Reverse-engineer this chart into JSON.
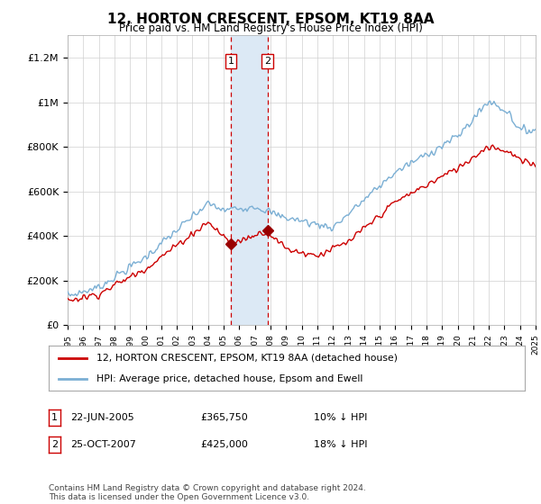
{
  "title": "12, HORTON CRESCENT, EPSOM, KT19 8AA",
  "subtitle": "Price paid vs. HM Land Registry's House Price Index (HPI)",
  "x_start_year": 1995,
  "x_end_year": 2025,
  "ylim": [
    0,
    1300000
  ],
  "yticks": [
    0,
    200000,
    400000,
    600000,
    800000,
    1000000,
    1200000
  ],
  "ytick_labels": [
    "£0",
    "£200K",
    "£400K",
    "£600K",
    "£800K",
    "£1M",
    "£1.2M"
  ],
  "sale1_date": 2005.47,
  "sale1_price": 365750,
  "sale1_label": "1",
  "sale1_text": "22-JUN-2005",
  "sale1_price_str": "£365,750",
  "sale1_hpi": "10% ↓ HPI",
  "sale2_date": 2007.81,
  "sale2_price": 425000,
  "sale2_label": "2",
  "sale2_text": "25-OCT-2007",
  "sale2_price_str": "£425,000",
  "sale2_hpi": "18% ↓ HPI",
  "hpi_line_color": "#7bafd4",
  "sale_line_color": "#cc0000",
  "shade_color": "#dce9f5",
  "marker_color": "#990000",
  "legend1_label": "12, HORTON CRESCENT, EPSOM, KT19 8AA (detached house)",
  "legend2_label": "HPI: Average price, detached house, Epsom and Ewell",
  "footer": "Contains HM Land Registry data © Crown copyright and database right 2024.\nThis data is licensed under the Open Government Licence v3.0.",
  "background_color": "#ffffff",
  "grid_color": "#d0d0d0"
}
